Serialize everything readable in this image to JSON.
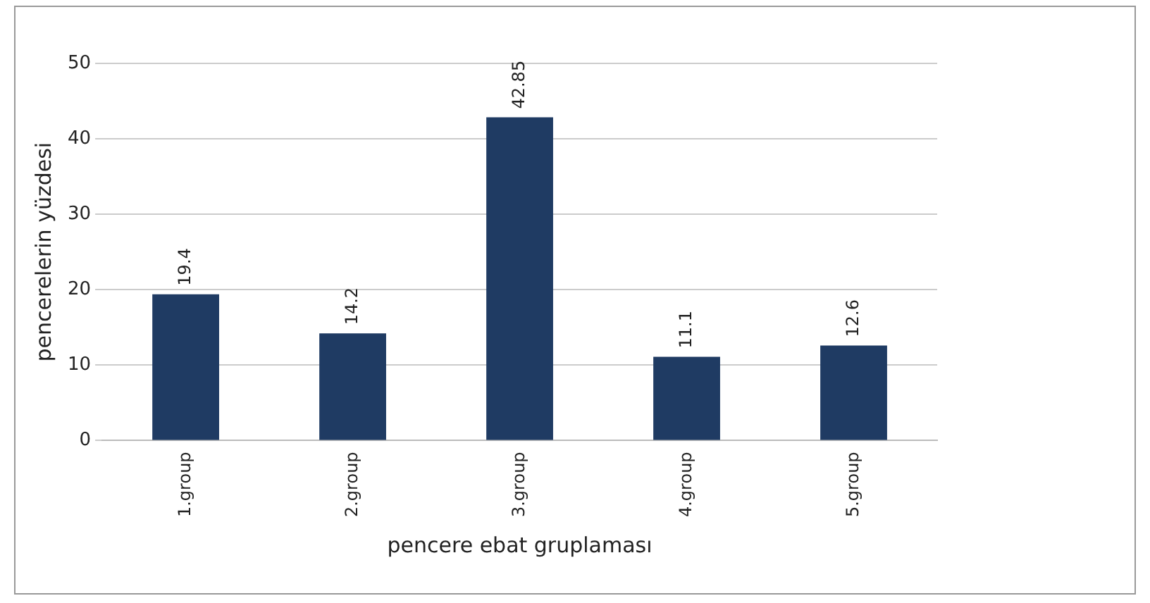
{
  "chart_data": {
    "type": "bar",
    "xlabel": "pencere ebat gruplaması",
    "ylabel": "pencerelerin yüzdesi",
    "categories": [
      "1.group",
      "2.group",
      "3.group",
      "4.group",
      "5.group"
    ],
    "values": [
      19.4,
      14.2,
      42.85,
      11.1,
      12.6
    ],
    "color": "#1f3b63",
    "ylim": [
      0,
      50
    ],
    "yticks": [
      0,
      10,
      20,
      30,
      40,
      50
    ],
    "grid": "y",
    "data_labels": true,
    "legend": false
  }
}
